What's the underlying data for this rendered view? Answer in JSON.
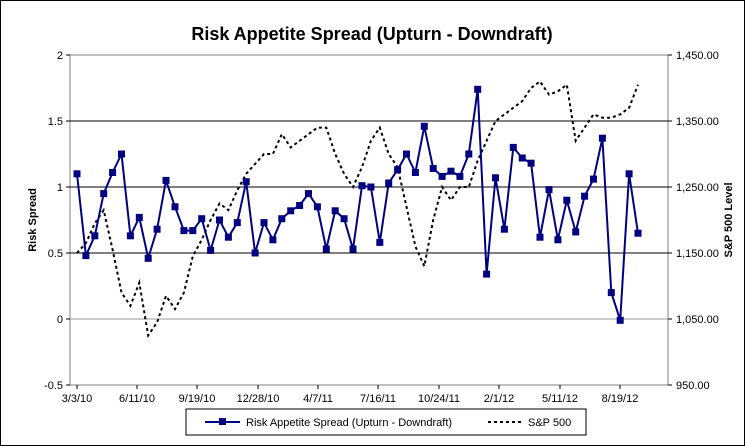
{
  "chart_data": {
    "type": "line",
    "title": "Risk Appetite Spread (Upturn - Downdraft)",
    "ylabel": "Risk Spread",
    "y2label": "S&P 500 Level",
    "ylim": [
      -0.5,
      2
    ],
    "y_ticks": [
      "-0.5",
      "0",
      "0.5",
      "1",
      "1.5",
      "2"
    ],
    "y2lim": [
      950,
      1450
    ],
    "y2_ticks": [
      "950.00",
      "1,050.00",
      "1,150.00",
      "1,250.00",
      "1,350.00",
      "1,450.00"
    ],
    "x_ticks": [
      "3/3/10",
      "6/11/10",
      "9/19/10",
      "12/28/10",
      "4/7/11",
      "7/16/11",
      "10/24/11",
      "2/1/12",
      "5/11/12",
      "8/19/12"
    ],
    "gridlines": "horizontal at 0.5, 1, 1.5 (major); 0 grey",
    "legend_position": "bottom",
    "series": [
      {
        "name": "Risk Appetite Spread (Upturn - Downdraft)",
        "axis": "left",
        "color": "#000080",
        "style": "solid line with square markers",
        "values": [
          1.1,
          0.48,
          0.63,
          0.95,
          1.11,
          1.25,
          0.63,
          0.77,
          0.46,
          0.68,
          1.05,
          0.85,
          0.67,
          0.67,
          0.76,
          0.52,
          0.75,
          0.62,
          0.73,
          1.04,
          0.5,
          0.73,
          0.6,
          0.76,
          0.82,
          0.86,
          0.95,
          0.85,
          0.53,
          0.82,
          0.76,
          0.53,
          1.01,
          1.0,
          0.58,
          1.03,
          1.13,
          1.25,
          1.11,
          1.46,
          1.14,
          1.08,
          1.12,
          1.08,
          1.25,
          1.74,
          0.34,
          1.07,
          0.68,
          1.3,
          1.22,
          1.18,
          0.62,
          0.98,
          0.6,
          0.9,
          0.66,
          0.93,
          1.06,
          1.37,
          0.2,
          -0.01,
          1.1,
          0.65
        ]
      },
      {
        "name": "S&P 500",
        "axis": "right",
        "color": "#000000",
        "style": "dashed line",
        "values": [
          1150,
          1165,
          1195,
          1215,
          1155,
          1090,
          1070,
          1105,
          1025,
          1045,
          1085,
          1065,
          1090,
          1145,
          1170,
          1200,
          1225,
          1215,
          1245,
          1270,
          1285,
          1300,
          1300,
          1330,
          1310,
          1320,
          1330,
          1340,
          1340,
          1300,
          1270,
          1250,
          1280,
          1320,
          1340,
          1300,
          1280,
          1220,
          1160,
          1130,
          1200,
          1250,
          1230,
          1250,
          1250,
          1290,
          1320,
          1350,
          1360,
          1370,
          1380,
          1400,
          1410,
          1390,
          1395,
          1405,
          1320,
          1340,
          1360,
          1355,
          1355,
          1360,
          1370,
          1405
        ]
      }
    ]
  }
}
